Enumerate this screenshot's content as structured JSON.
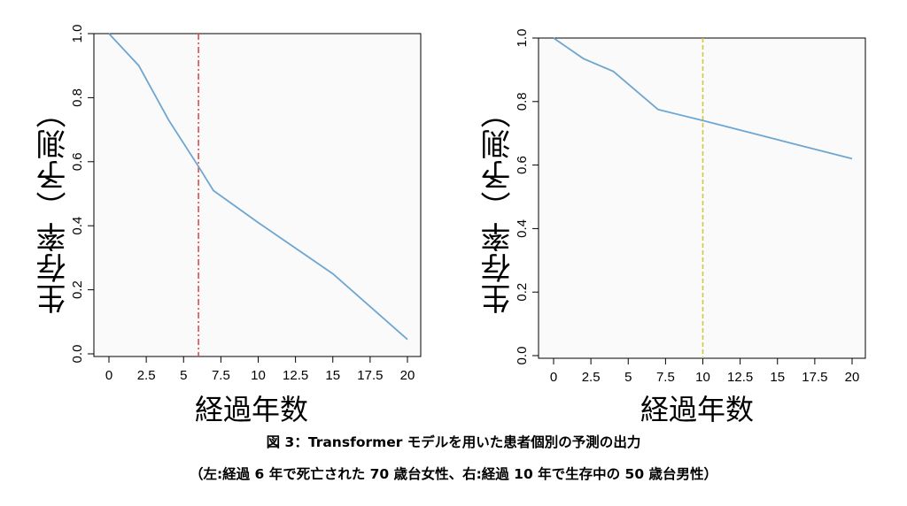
{
  "chart_data": [
    {
      "type": "line",
      "xlabel": "経過年数",
      "ylabel": "生存率（予測）",
      "xlim": [
        0,
        20
      ],
      "ylim": [
        0,
        1
      ],
      "xticks": [
        "0",
        "2.5",
        "5",
        "7.5",
        "10",
        "12.5",
        "15",
        "17.5",
        "20"
      ],
      "yticks": [
        "0.0",
        "0.2",
        "0.4",
        "0.6",
        "0.8",
        "1.0"
      ],
      "grid": false,
      "series": [
        {
          "x": [
            0,
            2,
            4,
            6,
            7,
            10,
            15,
            20
          ],
          "y": [
            1.0,
            0.9,
            0.73,
            0.585,
            0.51,
            0.41,
            0.25,
            0.045
          ],
          "color": "#6fa6cf"
        }
      ],
      "vline": {
        "x": 6,
        "color": "#e34a4a",
        "style": "dash-dot"
      }
    },
    {
      "type": "line",
      "xlabel": "経過年数",
      "ylabel": "生存率（予測）",
      "xlim": [
        0,
        20
      ],
      "ylim": [
        0,
        1
      ],
      "xticks": [
        "0",
        "2.5",
        "5",
        "7.5",
        "10",
        "12.5",
        "15",
        "17.5",
        "20"
      ],
      "yticks": [
        "0.0",
        "0.2",
        "0.4",
        "0.6",
        "0.8",
        "1.0"
      ],
      "grid": false,
      "series": [
        {
          "x": [
            0,
            2,
            4,
            7,
            10,
            15,
            20
          ],
          "y": [
            1.0,
            0.935,
            0.895,
            0.775,
            0.74,
            0.68,
            0.62
          ],
          "color": "#6fa6cf"
        }
      ],
      "vline": {
        "x": 10,
        "color": "#d9c53a",
        "style": "dashed"
      }
    }
  ],
  "caption": {
    "line1": "図 3：Transformer モデルを用いた患者個別の予測の出力",
    "line2": "（左:経過 6 年で死亡された 70 歳台女性、右:経過 10 年で生存中の 50 歳台男性）"
  }
}
